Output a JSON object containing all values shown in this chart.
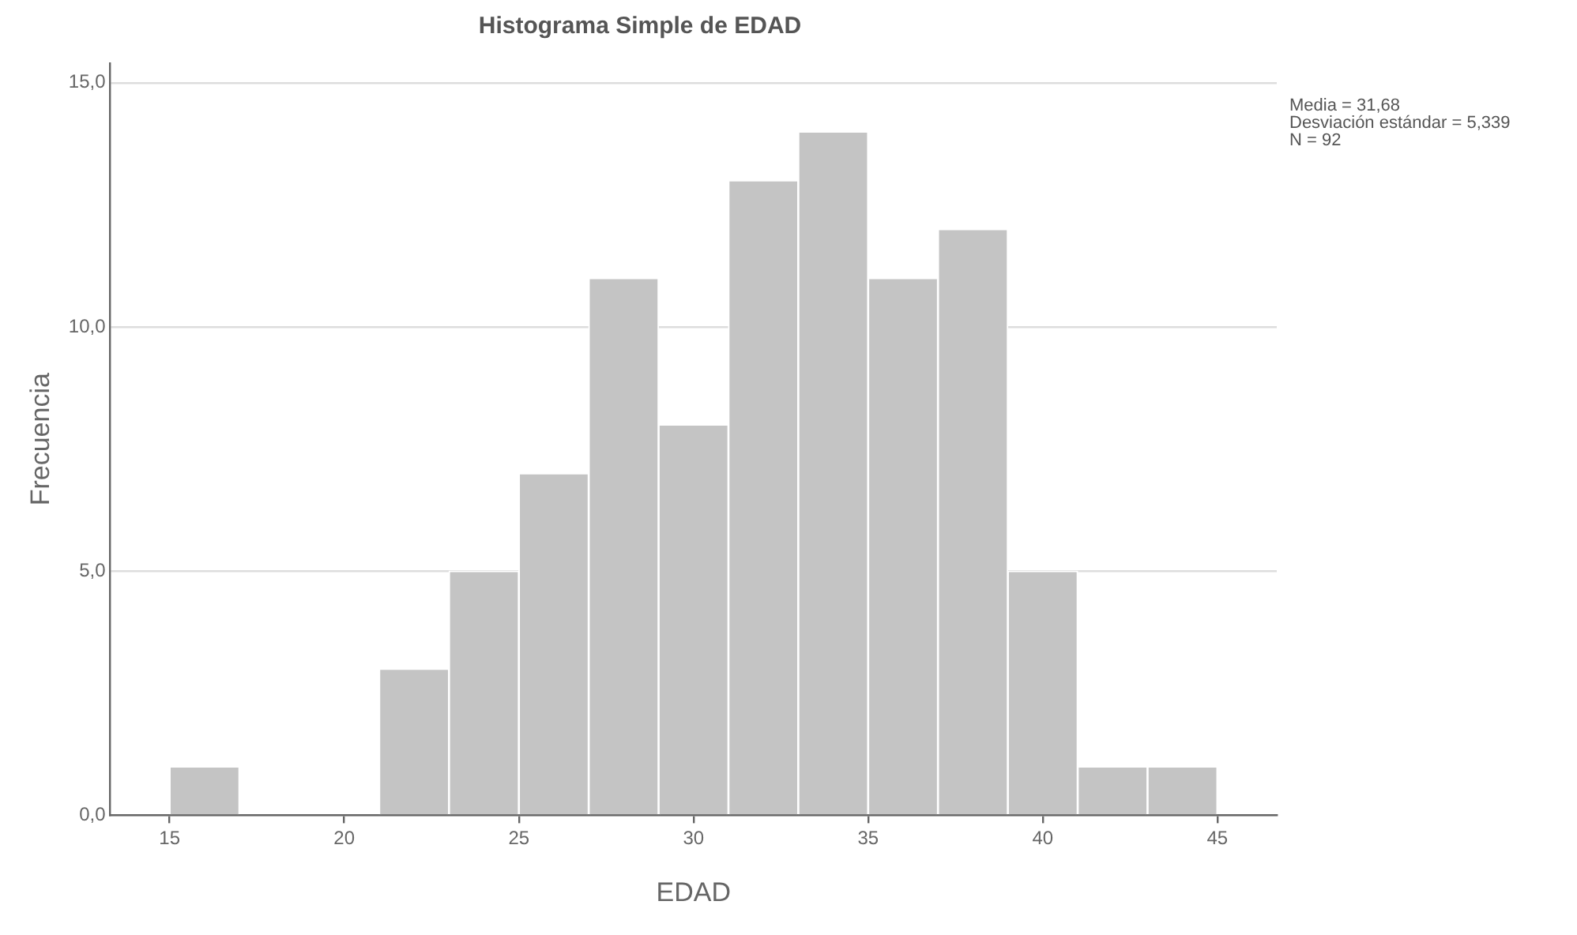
{
  "chart_data": {
    "type": "histogram",
    "title": "Histograma Simple de EDAD",
    "xlabel": "EDAD",
    "ylabel": "Frecuencia",
    "bins": [
      15,
      17,
      19,
      21,
      23,
      25,
      27,
      29,
      31,
      33,
      35,
      37,
      39,
      41,
      43,
      45
    ],
    "values": [
      1,
      0,
      0,
      3,
      5,
      7,
      11,
      8,
      13,
      14,
      11,
      12,
      5,
      1,
      1
    ],
    "color": "#c4c4c4",
    "xlim": [
      13.3,
      46.7
    ],
    "xticks": [
      15,
      20,
      25,
      30,
      35,
      40,
      45
    ],
    "ylim": [
      0,
      15.4
    ],
    "yticks": [
      {
        "value": 0,
        "label": "0,0"
      },
      {
        "value": 5,
        "label": "5,0"
      },
      {
        "value": 10,
        "label": "10,0"
      },
      {
        "value": 15,
        "label": "15,0"
      }
    ],
    "grid": "y",
    "annotations": [
      "Media = 31,68",
      "Desviación estándar = 5,339",
      "N = 92"
    ]
  }
}
